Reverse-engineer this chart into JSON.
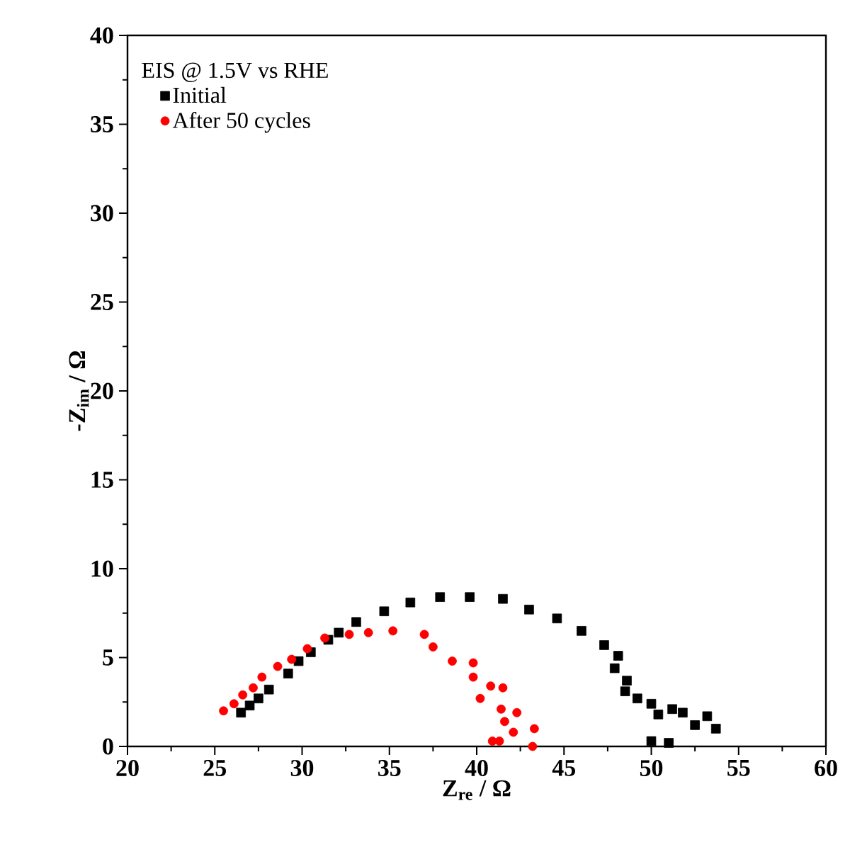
{
  "chart_data": {
    "type": "scatter",
    "xlabel": "Z$_{re}$ / Ω",
    "ylabel": "-Z$_{im}$ / Ω",
    "legend_title": "EIS @ 1.5V vs RHE",
    "legend": "top left",
    "grid": false,
    "xlim": [
      20,
      60
    ],
    "xticks": [
      20,
      25,
      30,
      35,
      40,
      45,
      50,
      55,
      60
    ],
    "ylim": [
      0,
      40
    ],
    "yticks": [
      0,
      5,
      10,
      15,
      20,
      25,
      30,
      35,
      40
    ],
    "series": [
      {
        "name": "Initial",
        "color": "#000000",
        "marker": "square",
        "x": [
          26.5,
          27.0,
          27.5,
          28.1,
          29.2,
          29.8,
          30.5,
          31.5,
          32.1,
          33.1,
          34.7,
          36.2,
          37.9,
          39.6,
          41.5,
          43.0,
          44.6,
          46.0,
          47.3,
          48.1,
          47.9,
          48.6,
          48.5,
          49.2,
          50.0,
          50.4,
          51.2,
          51.8,
          52.5,
          53.2,
          53.7,
          50.0,
          51.0
        ],
        "values": [
          1.9,
          2.3,
          2.7,
          3.2,
          4.1,
          4.8,
          5.3,
          6.0,
          6.4,
          7.0,
          7.6,
          8.1,
          8.4,
          8.4,
          8.3,
          7.7,
          7.2,
          6.5,
          5.7,
          5.1,
          4.4,
          3.7,
          3.1,
          2.7,
          2.4,
          1.8,
          2.1,
          1.9,
          1.2,
          1.7,
          1.0,
          0.3,
          0.2
        ]
      },
      {
        "name": "After 50 cycles",
        "color": "#ff0000",
        "marker": "circle",
        "x": [
          25.5,
          26.1,
          26.6,
          27.2,
          27.7,
          28.6,
          29.4,
          30.3,
          31.3,
          32.7,
          33.8,
          35.2,
          37.0,
          37.5,
          38.6,
          39.8,
          39.8,
          40.2,
          40.8,
          41.5,
          41.4,
          42.3,
          41.6,
          42.1,
          43.3,
          41.3,
          40.9,
          43.2
        ],
        "values": [
          2.0,
          2.4,
          2.9,
          3.3,
          3.9,
          4.5,
          4.9,
          5.5,
          6.1,
          6.3,
          6.4,
          6.5,
          6.3,
          5.6,
          4.8,
          4.7,
          3.9,
          2.7,
          3.4,
          3.3,
          2.1,
          1.9,
          1.4,
          0.8,
          1.0,
          0.3,
          0.3,
          0.0
        ]
      }
    ]
  }
}
